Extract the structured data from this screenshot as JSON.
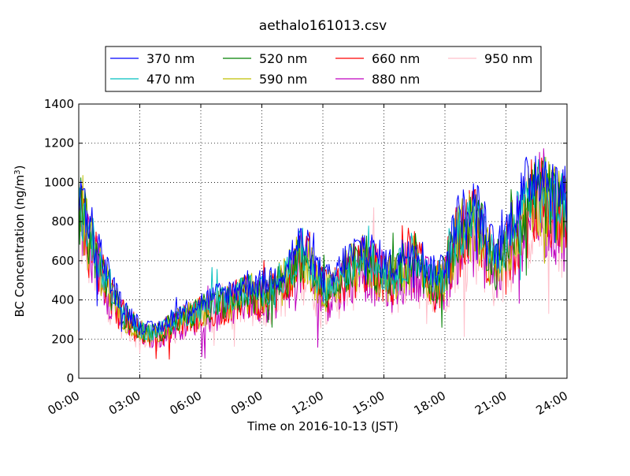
{
  "chart_data": {
    "type": "line",
    "title": "aethalo161013.csv",
    "xlabel": "Time on 2016-10-13 (JST)",
    "ylabel": "BC Concentration (ng/m³)",
    "ylabel_main": "BC Concentration (ng/m",
    "ylabel_sup": "3",
    "ylabel_end": ")",
    "xlim": [
      0,
      24
    ],
    "ylim": [
      0,
      1400
    ],
    "x_ticks": [
      0,
      3,
      6,
      9,
      12,
      15,
      18,
      21,
      24
    ],
    "x_tick_labels": [
      "00:00",
      "03:00",
      "06:00",
      "09:00",
      "12:00",
      "15:00",
      "18:00",
      "21:00",
      "24:00"
    ],
    "y_ticks": [
      0,
      200,
      400,
      600,
      800,
      1000,
      1200,
      1400
    ],
    "y_tick_labels": [
      "0",
      "200",
      "400",
      "600",
      "800",
      "1000",
      "1200",
      "1400"
    ],
    "grid": true,
    "legend": {
      "position": "top-center",
      "ncol": 4
    },
    "base_profile": [
      [
        0,
        860
      ],
      [
        0.5,
        720
      ],
      [
        1,
        580
      ],
      [
        1.5,
        460
      ],
      [
        2,
        340
      ],
      [
        2.5,
        290
      ],
      [
        3,
        240
      ],
      [
        3.5,
        220
      ],
      [
        4,
        230
      ],
      [
        4.5,
        270
      ],
      [
        5,
        300
      ],
      [
        5.5,
        320
      ],
      [
        6,
        340
      ],
      [
        6.5,
        360
      ],
      [
        7,
        380
      ],
      [
        7.5,
        390
      ],
      [
        8,
        420
      ],
      [
        8.5,
        430
      ],
      [
        9,
        420
      ],
      [
        9.5,
        450
      ],
      [
        10,
        480
      ],
      [
        10.5,
        560
      ],
      [
        11,
        620
      ],
      [
        11.5,
        530
      ],
      [
        12,
        450
      ],
      [
        12.5,
        440
      ],
      [
        13,
        520
      ],
      [
        13.5,
        560
      ],
      [
        14,
        600
      ],
      [
        14.5,
        560
      ],
      [
        15,
        520
      ],
      [
        15.5,
        500
      ],
      [
        16,
        560
      ],
      [
        16.5,
        620
      ],
      [
        17,
        520
      ],
      [
        17.5,
        470
      ],
      [
        18,
        520
      ],
      [
        18.5,
        700
      ],
      [
        19,
        760
      ],
      [
        19.5,
        780
      ],
      [
        20,
        680
      ],
      [
        20.5,
        560
      ],
      [
        21,
        660
      ],
      [
        21.5,
        760
      ],
      [
        22,
        860
      ],
      [
        22.5,
        940
      ],
      [
        23,
        900
      ],
      [
        23.5,
        860
      ],
      [
        24,
        820
      ]
    ],
    "series": [
      {
        "name": "370 nm",
        "color": "#0000ff",
        "scale": 1.14
      },
      {
        "name": "470 nm",
        "color": "#00bfbf",
        "scale": 1.05
      },
      {
        "name": "520 nm",
        "color": "#008000",
        "scale": 1.02
      },
      {
        "name": "590 nm",
        "color": "#bfbf00",
        "scale": 1.0
      },
      {
        "name": "660 nm",
        "color": "#ff0000",
        "scale": 0.98
      },
      {
        "name": "880 nm",
        "color": "#bf00bf",
        "scale": 0.95
      },
      {
        "name": "950 nm",
        "color": "#ffc0cb",
        "scale": 0.92
      }
    ]
  }
}
